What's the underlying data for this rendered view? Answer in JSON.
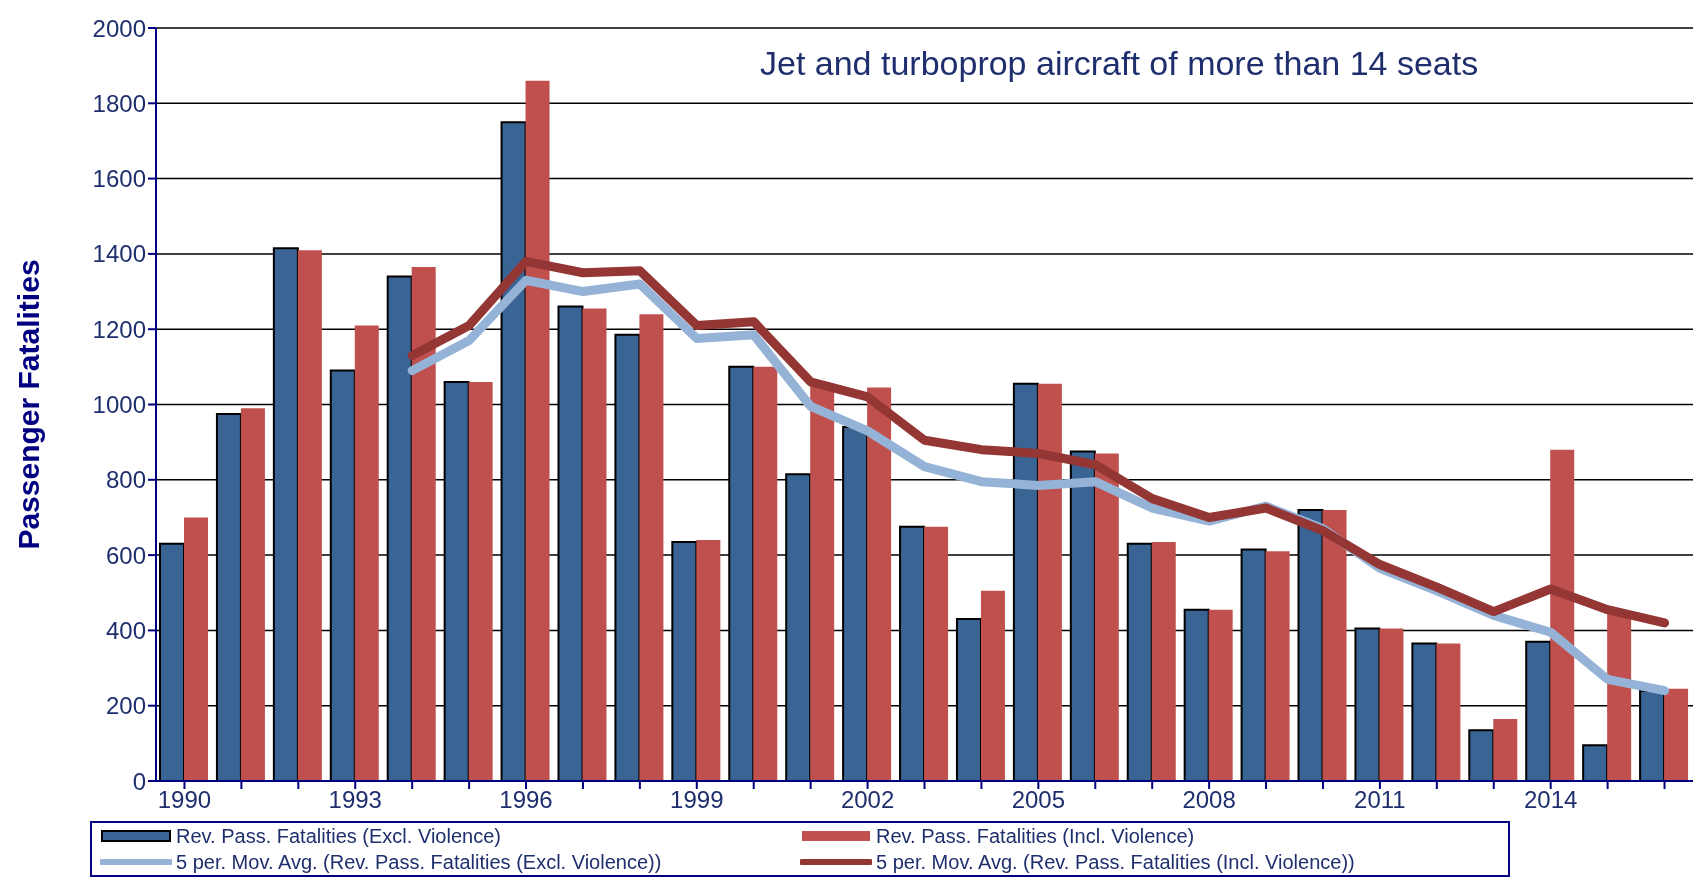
{
  "chart_data": {
    "type": "bar",
    "ylabel": "Passenger Fatalities",
    "annotations": [
      "Jet and turboprop aircraft of more than 14 seats"
    ],
    "categories": [
      "1990",
      null,
      null,
      "1993",
      null,
      null,
      "1996",
      null,
      null,
      "1999",
      null,
      null,
      "2002",
      null,
      null,
      "2005",
      null,
      null,
      "2008",
      null,
      null,
      "2011",
      null,
      null,
      "2014",
      null,
      null
    ],
    "series": [
      {
        "name": "Rev. Pass. Fatalities (Excl. Violence)",
        "color": "#3a6494",
        "values": [
          630,
          975,
          1415,
          1090,
          1340,
          1060,
          1750,
          1260,
          1185,
          635,
          1100,
          815,
          940,
          675,
          430,
          1055,
          875,
          630,
          455,
          615,
          720,
          405,
          365,
          135,
          370,
          95,
          240
        ]
      },
      {
        "name": "Rev. Pass. Fatalities (Incl. Violence)",
        "color": "#c0504d",
        "values": [
          700,
          990,
          1410,
          1210,
          1365,
          1060,
          1860,
          1255,
          1240,
          640,
          1100,
          1050,
          1045,
          675,
          505,
          1055,
          870,
          635,
          455,
          610,
          720,
          405,
          365,
          165,
          880,
          450,
          245
        ]
      },
      {
        "name": "5 per. Mov. Avg. (Rev. Pass. Fatalities (Excl. Violence))",
        "type": "line",
        "color": "#95b3d7",
        "values": [
          null,
          null,
          null,
          null,
          1090,
          1170,
          1330,
          1300,
          1320,
          1175,
          1185,
          995,
          930,
          835,
          795,
          785,
          795,
          725,
          690,
          730,
          670,
          565,
          505,
          440,
          395,
          270,
          240
        ]
      },
      {
        "name": "5 per. Mov. Avg. (Rev. Pass. Fatalities (Incl. Violence))",
        "type": "line",
        "color": "#943634",
        "values": [
          null,
          null,
          null,
          null,
          1130,
          1210,
          1380,
          1350,
          1355,
          1210,
          1220,
          1060,
          1020,
          905,
          880,
          870,
          840,
          750,
          700,
          725,
          665,
          575,
          515,
          450,
          510,
          455,
          420
        ]
      }
    ],
    "ylim": [
      0,
      2000
    ],
    "yticks": [
      0,
      200,
      400,
      600,
      800,
      1000,
      1200,
      1400,
      1600,
      1800,
      2000
    ],
    "grid": "y",
    "legend": "bottom",
    "marker": "none",
    "line_style": "solid"
  }
}
